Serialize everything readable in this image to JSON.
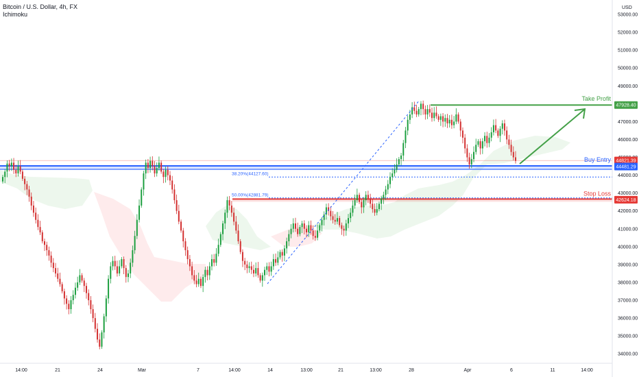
{
  "header": {
    "title": "Bitcoin / U.S. Dollar, 4h, FX",
    "indicator": "Ichimoku",
    "currency": "USD"
  },
  "chart_data": {
    "type": "candlestick",
    "ylim": [
      33700,
      53500
    ],
    "y_ticks": [
      "34000.00",
      "35000.00",
      "36000.00",
      "37000.00",
      "38000.00",
      "39000.00",
      "40000.00",
      "41000.00",
      "42000.00",
      "43000.00",
      "44000.00",
      "45000.00",
      "46000.00",
      "47000.00",
      "48000.00",
      "49000.00",
      "50000.00",
      "51000.00",
      "52000.00",
      "53000.00"
    ],
    "x_ticks": [
      "14:00",
      "21",
      "24",
      "Mar",
      "7",
      "14:00",
      "14",
      "13:00",
      "21",
      "13:00",
      "28",
      "Apr",
      "6",
      "11",
      "14:00"
    ],
    "grid": false,
    "price_tags": [
      {
        "value": "47928.40",
        "color": "#43a047"
      },
      {
        "value": "44821.39",
        "color": "#e53935"
      },
      {
        "value": "44481.29",
        "color": "#2962ff"
      },
      {
        "value": "42624.18",
        "color": "#e53935"
      }
    ],
    "levels": {
      "take_profit": {
        "label": "Take Profit",
        "price": 47928.4,
        "color": "#43a047"
      },
      "buy_entry": {
        "label": "Buy Entry",
        "price": 44481.29,
        "color": "#2962ff"
      },
      "stop_loss": {
        "label": "Stop Loss",
        "price": 42624.18,
        "color": "#e53935"
      }
    },
    "fib_labels": [
      {
        "text": "38.20%(44127.60)",
        "price": 44127.6
      },
      {
        "text": "50.00%(42881.79)",
        "price": 42881.79
      }
    ],
    "current_price": 44821.39,
    "candle_closes": [
      43900,
      44200,
      44650,
      44500,
      44700,
      44300,
      44100,
      44500,
      44200,
      43800,
      43500,
      43200,
      42800,
      42300,
      41900,
      41500,
      41100,
      40800,
      40300,
      40100,
      39800,
      39500,
      39100,
      38800,
      38500,
      38200,
      37900,
      37500,
      37100,
      36800,
      36500,
      37000,
      37300,
      37700,
      38000,
      38400,
      38100,
      37800,
      37400,
      37000,
      36500,
      36000,
      35400,
      34800,
      34400,
      35200,
      36100,
      37100,
      38200,
      38900,
      39200,
      38900,
      38500,
      38900,
      39300,
      38800,
      38300,
      38500,
      39100,
      39800,
      40600,
      41500,
      42300,
      43200,
      44100,
      44700,
      44400,
      44800,
      44500,
      44100,
      44400,
      44700,
      44200,
      43900,
      44300,
      44000,
      43700,
      43200,
      42600,
      42000,
      41400,
      40900,
      40300,
      39800,
      39300,
      38900,
      38400,
      38100,
      37900,
      38200,
      37800,
      38300,
      38700,
      38400,
      38900,
      39300,
      39100,
      39600,
      40100,
      40700,
      41300,
      41900,
      42600,
      42300,
      41900,
      41400,
      40900,
      40300,
      39700,
      39200,
      39000,
      38800,
      38900,
      38700,
      38500,
      38800,
      38400,
      38100,
      38400,
      38700,
      38900,
      38600,
      38900,
      39300,
      39100,
      39400,
      39700,
      39500,
      39900,
      40300,
      40700,
      41000,
      41300,
      41000,
      40700,
      41100,
      41300,
      41000,
      40800,
      41200,
      40900,
      40600,
      40500,
      40900,
      41200,
      41500,
      41800,
      42200,
      42000,
      41700,
      41500,
      41400,
      41600,
      41200,
      41000,
      40900,
      41300,
      41600,
      41900,
      42300,
      42600,
      42900,
      42500,
      42200,
      42600,
      42900,
      42700,
      42400,
      42100,
      41900,
      42100,
      42400,
      42700,
      42900,
      43200,
      43500,
      43900,
      44100,
      44300,
      44600,
      44900,
      45100,
      45800,
      46500,
      47100,
      47400,
      47800,
      47600,
      47400,
      47700,
      48000,
      47700,
      47400,
      47700,
      47500,
      47200,
      47500,
      47300,
      47100,
      47300,
      47000,
      47200,
      46900,
      47100,
      46800,
      47000,
      47400,
      47000,
      46500,
      46100,
      45500,
      45000,
      44600,
      44900,
      45300,
      45700,
      45900,
      45500,
      45900,
      46200,
      45800,
      46100,
      46400,
      46800,
      46500,
      46200,
      46600,
      46900,
      46500,
      46000,
      45700,
      45300,
      45000,
      44800
    ]
  }
}
